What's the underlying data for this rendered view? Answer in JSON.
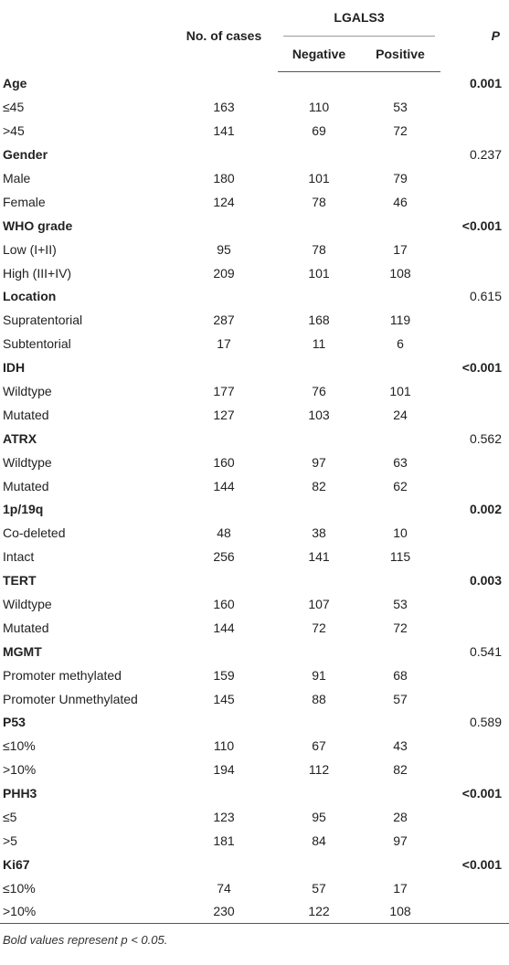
{
  "header": {
    "cases": "No. of cases",
    "group": "LGALS3",
    "p": "P",
    "negative": "Negative",
    "positive": "Positive"
  },
  "groups": [
    {
      "name": "Age",
      "p": "0.001",
      "bold": true,
      "rows": [
        {
          "label": "≤45",
          "cases": "163",
          "neg": "110",
          "pos": "53"
        },
        {
          "label": ">45",
          "cases": "141",
          "neg": "69",
          "pos": "72"
        }
      ]
    },
    {
      "name": "Gender",
      "p": "0.237",
      "bold": false,
      "rows": [
        {
          "label": "Male",
          "cases": "180",
          "neg": "101",
          "pos": "79"
        },
        {
          "label": "Female",
          "cases": "124",
          "neg": "78",
          "pos": "46"
        }
      ]
    },
    {
      "name": "WHO grade",
      "p": "<0.001",
      "bold": true,
      "rows": [
        {
          "label": "Low (I+II)",
          "cases": "95",
          "neg": "78",
          "pos": "17"
        },
        {
          "label": "High (III+IV)",
          "cases": "209",
          "neg": "101",
          "pos": "108"
        }
      ]
    },
    {
      "name": "Location",
      "p": "0.615",
      "bold": false,
      "rows": [
        {
          "label": "Supratentorial",
          "cases": "287",
          "neg": "168",
          "pos": "119"
        },
        {
          "label": "Subtentorial",
          "cases": "17",
          "neg": "11",
          "pos": "6"
        }
      ]
    },
    {
      "name": "IDH",
      "p": "<0.001",
      "bold": true,
      "rows": [
        {
          "label": "Wildtype",
          "cases": "177",
          "neg": "76",
          "pos": "101"
        },
        {
          "label": "Mutated",
          "cases": "127",
          "neg": "103",
          "pos": "24"
        }
      ]
    },
    {
      "name": "ATRX",
      "p": "0.562",
      "bold": false,
      "rows": [
        {
          "label": "Wildtype",
          "cases": "160",
          "neg": "97",
          "pos": "63"
        },
        {
          "label": "Mutated",
          "cases": "144",
          "neg": "82",
          "pos": "62"
        }
      ]
    },
    {
      "name": "1p/19q",
      "p": "0.002",
      "bold": true,
      "rows": [
        {
          "label": "Co-deleted",
          "cases": "48",
          "neg": "38",
          "pos": "10"
        },
        {
          "label": "Intact",
          "cases": "256",
          "neg": "141",
          "pos": "115"
        }
      ]
    },
    {
      "name": "TERT",
      "p": "0.003",
      "bold": true,
      "rows": [
        {
          "label": "Wildtype",
          "cases": "160",
          "neg": "107",
          "pos": "53"
        },
        {
          "label": "Mutated",
          "cases": "144",
          "neg": "72",
          "pos": "72"
        }
      ]
    },
    {
      "name": "MGMT",
      "p": "0.541",
      "bold": false,
      "rows": [
        {
          "label": "Promoter methylated",
          "cases": "159",
          "neg": "91",
          "pos": "68"
        },
        {
          "label": "Promoter Unmethylated",
          "cases": "145",
          "neg": "88",
          "pos": "57"
        }
      ]
    },
    {
      "name": "P53",
      "p": "0.589",
      "bold": false,
      "rows": [
        {
          "label": "≤10%",
          "cases": "110",
          "neg": "67",
          "pos": "43"
        },
        {
          "label": ">10%",
          "cases": "194",
          "neg": "112",
          "pos": "82"
        }
      ]
    },
    {
      "name": "PHH3",
      "p": "<0.001",
      "bold": true,
      "rows": [
        {
          "label": "≤5",
          "cases": "123",
          "neg": "95",
          "pos": "28"
        },
        {
          "label": ">5",
          "cases": "181",
          "neg": "84",
          "pos": "97"
        }
      ]
    },
    {
      "name": "Ki67",
      "p": "<0.001",
      "bold": true,
      "rows": [
        {
          "label": "≤10%",
          "cases": "74",
          "neg": "57",
          "pos": "17"
        },
        {
          "label": ">10%",
          "cases": "230",
          "neg": "122",
          "pos": "108"
        }
      ]
    }
  ],
  "footnote": "Bold values represent p < 0.05."
}
